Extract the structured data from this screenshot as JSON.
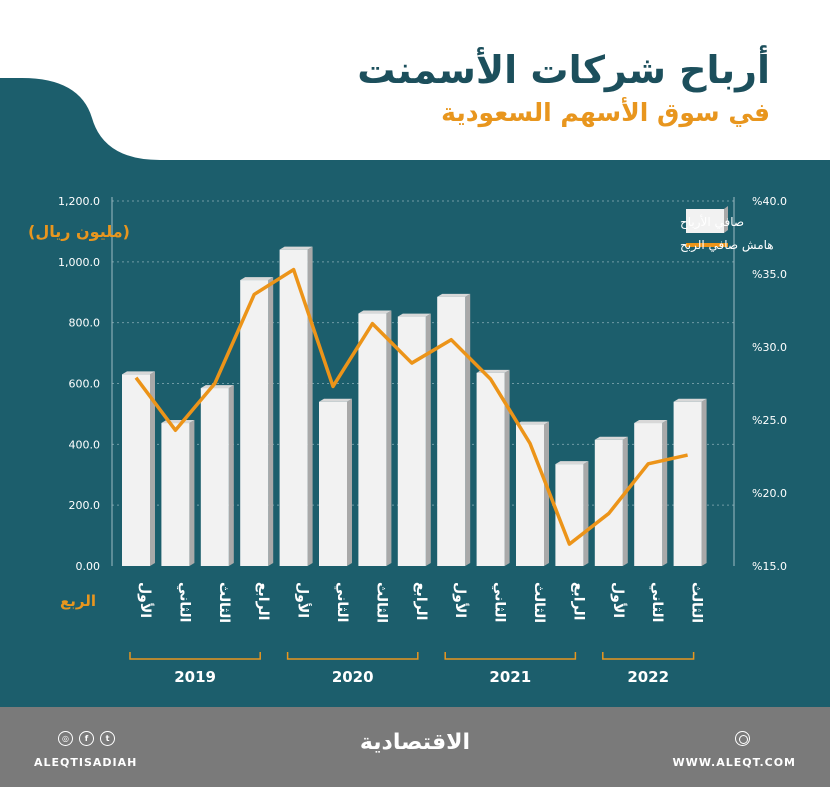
{
  "header": {
    "title": "أرباح شركات الأسمنت",
    "subtitle": "في سوق الأسهم السعودية"
  },
  "colors": {
    "panel": "#1c5e6c",
    "bar_face": "#f2f2f2",
    "bar_side": "#a9a9a9",
    "bar_top": "#d8d8d8",
    "line": "#ec9419",
    "accent_text": "#e8961e",
    "grid": "#6f9aa4",
    "year_bracket": "#e8961e",
    "footer": "#7a7a7a"
  },
  "chart_data": {
    "type": "bar",
    "unit_label": "(مليون ريال)",
    "quarter_axis_label": "الربع",
    "left_axis": {
      "ylim": [
        0,
        1200
      ],
      "ticks": [
        "0.00",
        "200.0",
        "400.0",
        "600.0",
        "800.0",
        "1,000.0",
        "1,200.0"
      ]
    },
    "right_axis": {
      "ylim": [
        15,
        40
      ],
      "ticks": [
        "%15.0",
        "%20.0",
        "%25.0",
        "%30.0",
        "%35.0",
        "%40.0"
      ]
    },
    "legend": {
      "position": "top-right",
      "items": [
        "صافي الأرباح",
        "هامش صافي الربح"
      ]
    },
    "categories": [
      "الأول",
      "الثاني",
      "الثالث",
      "الرابع",
      "الأول",
      "الثاني",
      "الثالث",
      "الرابع",
      "الأول",
      "الثاني",
      "الثالث",
      "الرابع",
      "الأول",
      "الثاني",
      "الثالث"
    ],
    "years": [
      {
        "label": "2019",
        "quarters": 4
      },
      {
        "label": "2020",
        "quarters": 4
      },
      {
        "label": "2021",
        "quarters": 4
      },
      {
        "label": "2022",
        "quarters": 3
      }
    ],
    "series": [
      {
        "name": "صافي الأرباح",
        "type": "bar",
        "axis": "left",
        "values": [
          630,
          470,
          585,
          940,
          1040,
          540,
          830,
          820,
          885,
          635,
          465,
          335,
          415,
          470,
          540
        ]
      },
      {
        "name": "هامش صافي الربح",
        "type": "line",
        "axis": "right",
        "values": [
          27.9,
          24.3,
          27.5,
          33.6,
          35.3,
          27.3,
          31.6,
          28.9,
          30.5,
          27.8,
          23.4,
          16.5,
          18.6,
          22.0,
          22.6
        ]
      }
    ]
  },
  "footer": {
    "logo": "الاقتصادية",
    "handle": "ALEQTISADIAH",
    "website": "WWW.ALEQT.COM",
    "social_icons": [
      "instagram-icon",
      "facebook-icon",
      "twitter-icon"
    ]
  }
}
